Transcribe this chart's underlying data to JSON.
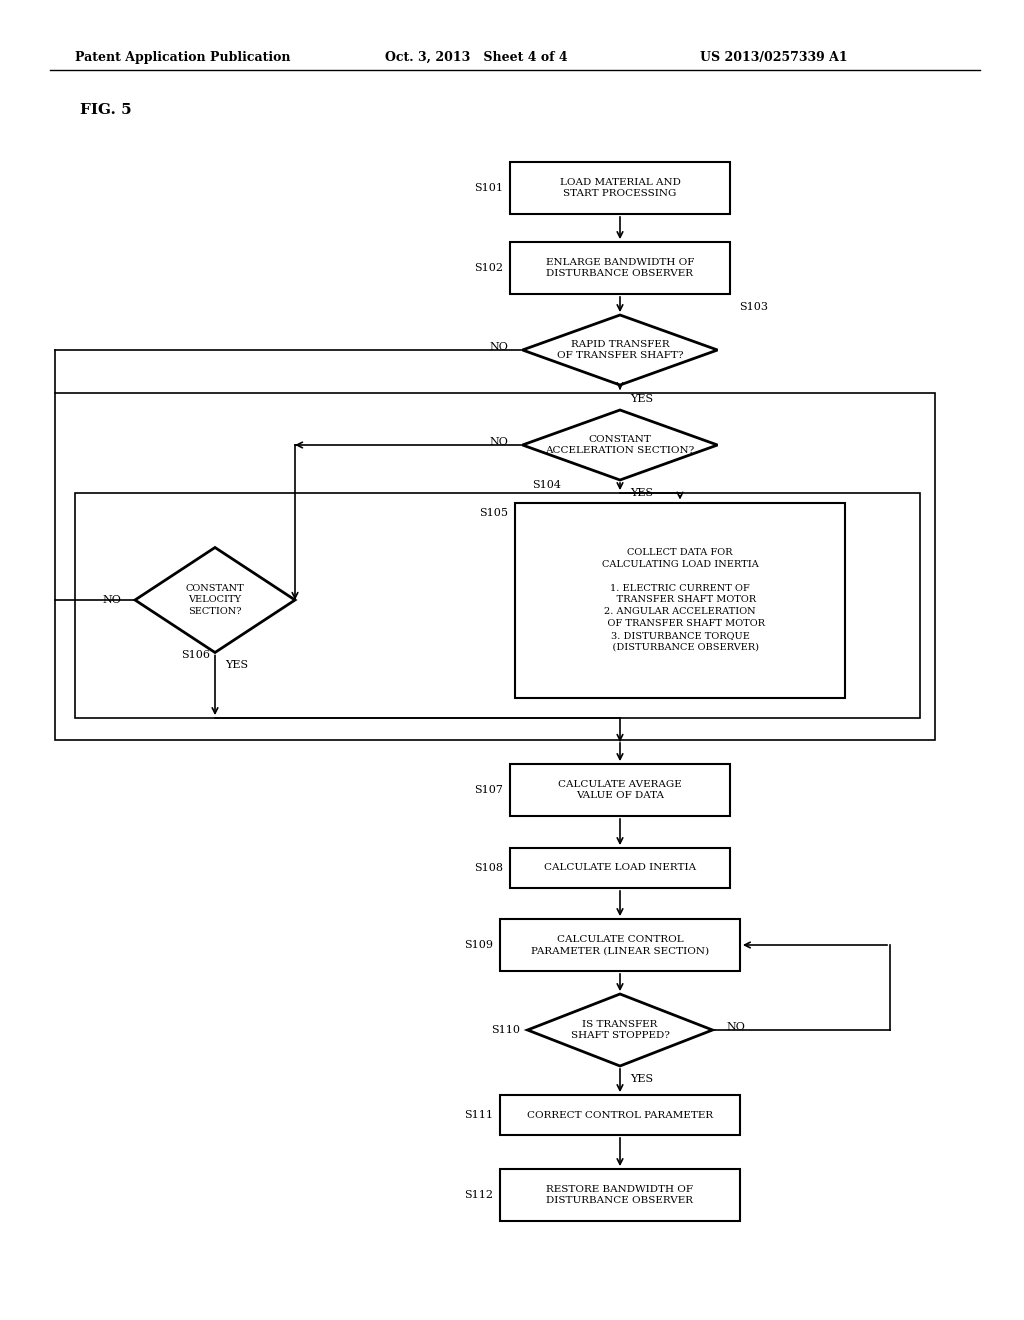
{
  "header_left": "Patent Application Publication",
  "header_mid": "Oct. 3, 2013   Sheet 4 of 4",
  "header_right": "US 2013/0257339 A1",
  "fig_label": "FIG. 5",
  "bg_color": "#ffffff",
  "s101": "LOAD MATERIAL AND\nSTART PROCESSING",
  "s102": "ENLARGE BANDWIDTH OF\nDISTURBANCE OBSERVER",
  "s103": "RAPID TRANSFER\nOF TRANSFER SHAFT?",
  "s104": "CONSTANT\nACCELERATION SECTION?",
  "s105": "COLLECT DATA FOR\nCALCULATING LOAD INERTIA\n\n1. ELECTRIC CURRENT OF\n    TRANSFER SHAFT MOTOR\n2. ANGULAR ACCELERATION\n    OF TRANSFER SHAFT MOTOR\n3. DISTURBANCE TORQUE\n    (DISTURBANCE OBSERVER)",
  "s106": "CONSTANT\nVELOCITY\nSECTION?",
  "s107": "CALCULATE AVERAGE\nVALUE OF DATA",
  "s108": "CALCULATE LOAD INERTIA",
  "s109": "CALCULATE CONTROL\nPARAMETER (LINEAR SECTION)",
  "s110": "IS TRANSFER\nSHAFT STOPPED?",
  "s111": "CORRECT CONTROL PARAMETER",
  "s112": "RESTORE BANDWIDTH OF\nDISTURBANCE OBSERVER"
}
